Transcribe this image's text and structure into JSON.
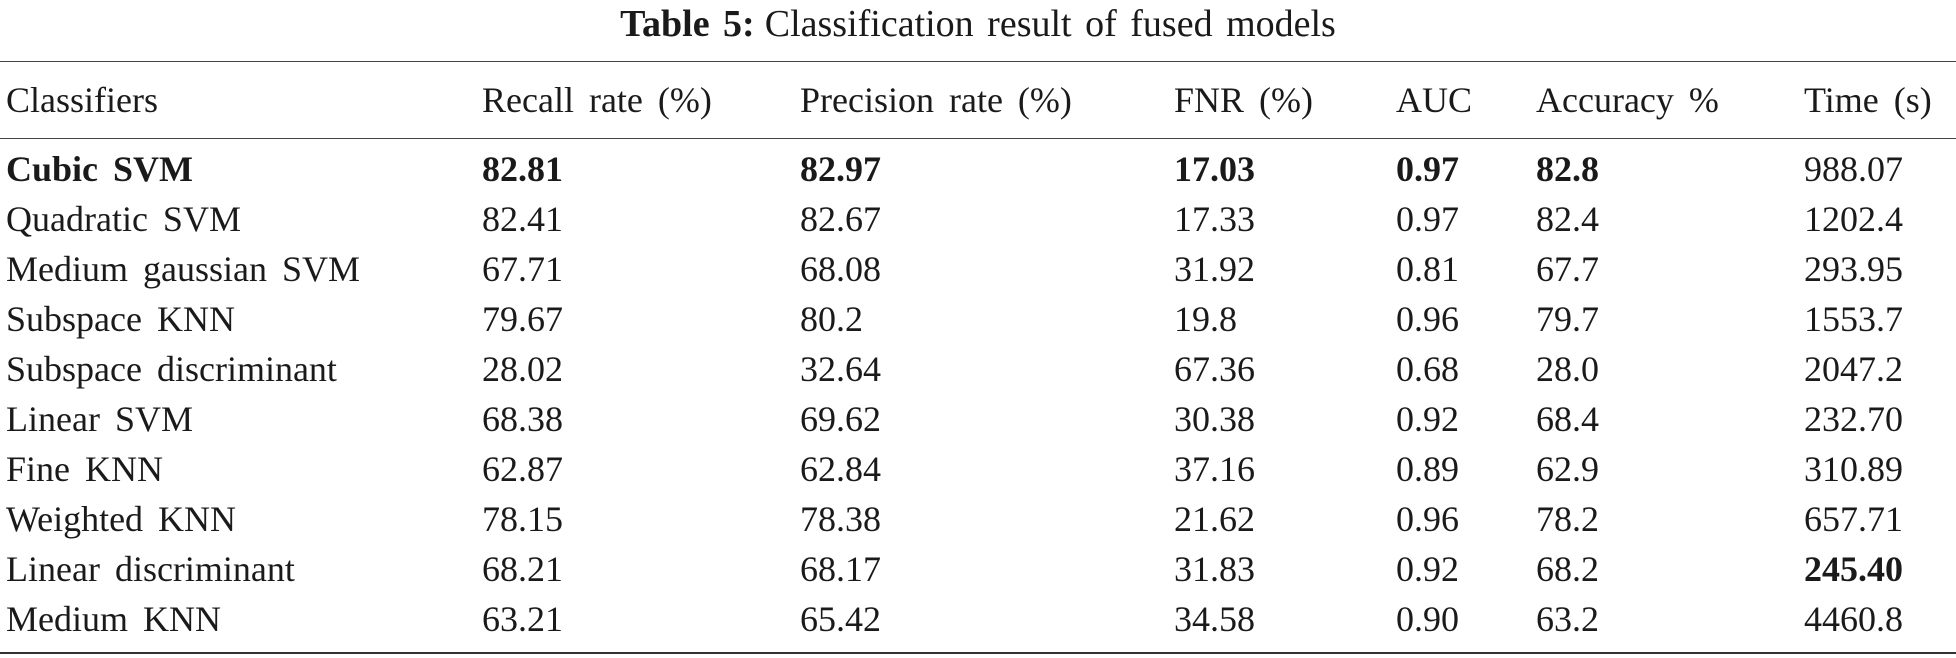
{
  "caption": {
    "label": "Table 5:",
    "text": "Classification result of fused models"
  },
  "table": {
    "headers": [
      "Classifiers",
      "Recall rate (%)",
      "Precision rate (%)",
      "FNR (%)",
      "AUC",
      "Accuracy %",
      "Time (s)"
    ],
    "rows": [
      {
        "cells": [
          "Cubic SVM",
          "82.81",
          "82.97",
          "17.03",
          "0.97",
          "82.8",
          "988.07"
        ],
        "bold": [
          0,
          1,
          2,
          3,
          4,
          5
        ]
      },
      {
        "cells": [
          "Quadratic SVM",
          "82.41",
          "82.67",
          "17.33",
          "0.97",
          "82.4",
          "1202.4"
        ],
        "bold": []
      },
      {
        "cells": [
          "Medium gaussian SVM",
          "67.71",
          "68.08",
          "31.92",
          "0.81",
          "67.7",
          "293.95"
        ],
        "bold": []
      },
      {
        "cells": [
          "Subspace KNN",
          "79.67",
          "80.2",
          "19.8",
          "0.96",
          "79.7",
          "1553.7"
        ],
        "bold": []
      },
      {
        "cells": [
          "Subspace discriminant",
          "28.02",
          "32.64",
          "67.36",
          "0.68",
          "28.0",
          "2047.2"
        ],
        "bold": []
      },
      {
        "cells": [
          "Linear SVM",
          "68.38",
          "69.62",
          "30.38",
          "0.92",
          "68.4",
          "232.70"
        ],
        "bold": []
      },
      {
        "cells": [
          "Fine KNN",
          "62.87",
          "62.84",
          "37.16",
          "0.89",
          "62.9",
          "310.89"
        ],
        "bold": []
      },
      {
        "cells": [
          "Weighted KNN",
          "78.15",
          "78.38",
          "21.62",
          "0.96",
          "78.2",
          "657.71"
        ],
        "bold": []
      },
      {
        "cells": [
          "Linear discriminant",
          "68.21",
          "68.17",
          "31.83",
          "0.92",
          "68.2",
          "245.40"
        ],
        "bold": [
          6
        ]
      },
      {
        "cells": [
          "Medium KNN",
          "63.21",
          "65.42",
          "34.58",
          "0.90",
          "63.2",
          "4460.8"
        ],
        "bold": []
      }
    ]
  }
}
